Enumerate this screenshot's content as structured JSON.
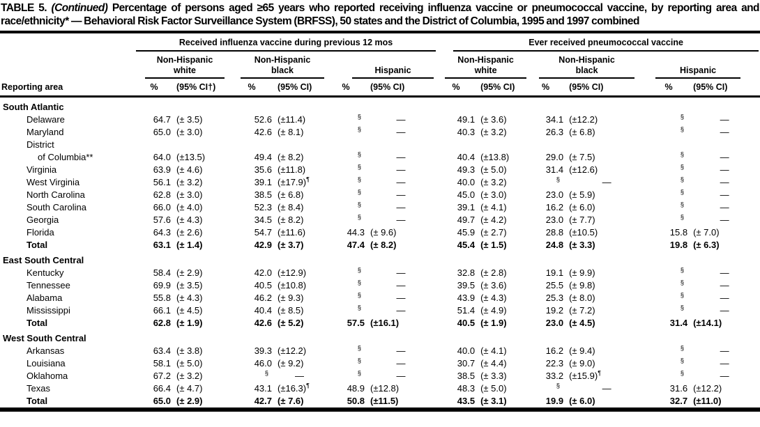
{
  "title": {
    "label": "TABLE 5.",
    "continued": "(Continued)",
    "rest": "Percentage of persons aged ≥65 years who reported receiving influenza vaccine or pneumococcal vaccine, by reporting area and race/ethnicity* — Behavioral Risk Factor Surveillance System (BRFSS), 50 states and the District of Columbia, 1995 and 1997 combined"
  },
  "table": {
    "row_header": "Reporting area",
    "groups": [
      {
        "label": "Received influenza vaccine during previous 12 mos"
      },
      {
        "label": "Ever received pneumococcal vaccine"
      }
    ],
    "races": [
      {
        "line1": "Non-Hispanic",
        "line2": "white"
      },
      {
        "line1": "Non-Hispanic",
        "line2": "black"
      },
      {
        "line1": "",
        "line2": "Hispanic"
      },
      {
        "line1": "Non-Hispanic",
        "line2": "white"
      },
      {
        "line1": "Non-Hispanic",
        "line2": "black"
      },
      {
        "line1": "",
        "line2": "Hispanic"
      }
    ],
    "columns": {
      "pct": "%"
    },
    "ci_labels": [
      "(95% CI†)",
      "(95% CI)",
      "(95% CI)",
      "(95% CI)",
      "(95% CI)",
      "(95% CI)"
    ],
    "sections": [
      {
        "name": "South Atlantic",
        "rows": [
          {
            "area": "Delaware",
            "indent": 1,
            "cells": [
              "64.7",
              "(± 3.5)",
              "52.6",
              "(±11.4)",
              "§",
              "—",
              "49.1",
              "(± 3.6)",
              "34.1",
              "(±12.2)",
              "§",
              "—"
            ]
          },
          {
            "area": "Maryland",
            "indent": 1,
            "cells": [
              "65.0",
              "(± 3.0)",
              "42.6",
              "(± 8.1)",
              "§",
              "—",
              "40.3",
              "(± 3.2)",
              "26.3",
              "(± 6.8)",
              "§",
              "—"
            ]
          },
          {
            "area": "District",
            "indent": 1,
            "cells": [
              "",
              "",
              "",
              "",
              "",
              "",
              "",
              "",
              "",
              "",
              "",
              ""
            ]
          },
          {
            "area": "of Columbia**",
            "indent": 2,
            "cells": [
              "64.0",
              "(±13.5)",
              "49.4",
              "(± 8.2)",
              "§",
              "—",
              "40.4",
              "(±13.8)",
              "29.0",
              "(± 7.5)",
              "§",
              "—"
            ]
          },
          {
            "area": "Virginia",
            "indent": 1,
            "cells": [
              "63.9",
              "(± 4.6)",
              "35.6",
              "(±11.8)",
              "§",
              "—",
              "49.3",
              "(± 5.0)",
              "31.4",
              "(±12.6)",
              "§",
              "—"
            ]
          },
          {
            "area": "West Virginia",
            "indent": 1,
            "cells": [
              "56.1",
              "(± 3.2)",
              "39.1",
              "(±17.9)¶",
              "§",
              "—",
              "40.0",
              "(± 3.2)",
              "§",
              "—",
              "§",
              "—"
            ]
          },
          {
            "area": "North Carolina",
            "indent": 1,
            "cells": [
              "62.8",
              "(± 3.0)",
              "38.5",
              "(± 6.8)",
              "§",
              "—",
              "45.0",
              "(± 3.0)",
              "23.0",
              "(± 5.9)",
              "§",
              "—"
            ]
          },
          {
            "area": "South Carolina",
            "indent": 1,
            "cells": [
              "66.0",
              "(± 4.0)",
              "52.3",
              "(± 8.4)",
              "§",
              "—",
              "39.1",
              "(± 4.1)",
              "16.2",
              "(± 6.0)",
              "§",
              "—"
            ]
          },
          {
            "area": "Georgia",
            "indent": 1,
            "cells": [
              "57.6",
              "(± 4.3)",
              "34.5",
              "(± 8.2)",
              "§",
              "—",
              "49.7",
              "(± 4.2)",
              "23.0",
              "(± 7.7)",
              "§",
              "—"
            ]
          },
          {
            "area": "Florida",
            "indent": 1,
            "cells": [
              "64.3",
              "(± 2.6)",
              "54.7",
              "(±11.6)",
              "44.3",
              "(± 9.6)",
              "45.9",
              "(± 2.7)",
              "28.8",
              "(±10.5)",
              "15.8",
              "(± 7.0)"
            ]
          },
          {
            "area": "Total",
            "indent": 1,
            "bold": true,
            "cells": [
              "63.1",
              "(± 1.4)",
              "42.9",
              "(± 3.7)",
              "47.4",
              "(± 8.2)",
              "45.4",
              "(± 1.5)",
              "24.8",
              "(± 3.3)",
              "19.8",
              "(± 6.3)"
            ]
          }
        ]
      },
      {
        "name": "East South Central",
        "rows": [
          {
            "area": "Kentucky",
            "indent": 1,
            "cells": [
              "58.4",
              "(± 2.9)",
              "42.0",
              "(±12.9)",
              "§",
              "—",
              "32.8",
              "(± 2.8)",
              "19.1",
              "(± 9.9)",
              "§",
              "—"
            ]
          },
          {
            "area": "Tennessee",
            "indent": 1,
            "cells": [
              "69.9",
              "(± 3.5)",
              "40.5",
              "(±10.8)",
              "§",
              "—",
              "39.5",
              "(± 3.6)",
              "25.5",
              "(± 9.8)",
              "§",
              "—"
            ]
          },
          {
            "area": "Alabama",
            "indent": 1,
            "cells": [
              "55.8",
              "(± 4.3)",
              "46.2",
              "(± 9.3)",
              "§",
              "—",
              "43.9",
              "(± 4.3)",
              "25.3",
              "(± 8.0)",
              "§",
              "—"
            ]
          },
          {
            "area": "Mississippi",
            "indent": 1,
            "cells": [
              "66.1",
              "(± 4.5)",
              "40.4",
              "(± 8.5)",
              "§",
              "—",
              "51.4",
              "(± 4.9)",
              "19.2",
              "(± 7.2)",
              "§",
              "—"
            ]
          },
          {
            "area": "Total",
            "indent": 1,
            "bold": true,
            "cells": [
              "62.8",
              "(± 1.9)",
              "42.6",
              "(± 5.2)",
              "57.5",
              "(±16.1)",
              "40.5",
              "(± 1.9)",
              "23.0",
              "(± 4.5)",
              "31.4",
              "(±14.1)"
            ]
          }
        ]
      },
      {
        "name": "West South Central",
        "rows": [
          {
            "area": "Arkansas",
            "indent": 1,
            "cells": [
              "63.4",
              "(± 3.8)",
              "39.3",
              "(±12.2)",
              "§",
              "—",
              "40.0",
              "(± 4.1)",
              "16.2",
              "(± 9.4)",
              "§",
              "—"
            ]
          },
          {
            "area": "Louisiana",
            "indent": 1,
            "cells": [
              "58.1",
              "(± 5.0)",
              "46.0",
              "(± 9.2)",
              "§",
              "—",
              "30.7",
              "(± 4.4)",
              "22.3",
              "(± 9.0)",
              "§",
              "—"
            ]
          },
          {
            "area": "Oklahoma",
            "indent": 1,
            "cells": [
              "67.2",
              "(± 3.2)",
              "§",
              "—",
              "§",
              "—",
              "38.5",
              "(± 3.3)",
              "33.2",
              "(±15.9)¶",
              "§",
              "—"
            ]
          },
          {
            "area": "Texas",
            "indent": 1,
            "cells": [
              "66.4",
              "(± 4.7)",
              "43.1",
              "(±16.3)¶",
              "48.9",
              "(±12.8)",
              "48.3",
              "(± 5.0)",
              "§",
              "—",
              "31.6",
              "(±12.2)"
            ]
          },
          {
            "area": "Total",
            "indent": 1,
            "bold": true,
            "cells": [
              "65.0",
              "(± 2.9)",
              "42.7",
              "(± 7.6)",
              "50.8",
              "(±11.5)",
              "43.5",
              "(± 3.1)",
              "19.9",
              "(± 6.0)",
              "32.7",
              "(±11.0)"
            ]
          }
        ]
      }
    ]
  }
}
